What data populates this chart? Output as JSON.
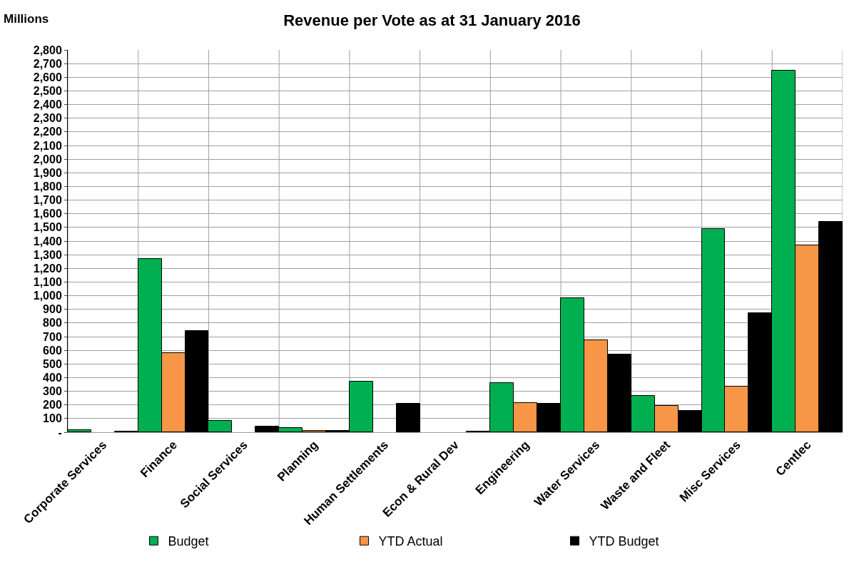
{
  "chart_data": {
    "type": "bar",
    "title": "Revenue per Vote as at 31 January 2016",
    "ylabel": "Millions",
    "categories": [
      "Corporate Services",
      "Finance",
      "Social Services",
      "Planning",
      "Human Settlements",
      "Econ & Rural Dev",
      "Engineering",
      "Water Services",
      "Waste and Fleet",
      "Misc Services",
      "Centlec"
    ],
    "series": [
      {
        "name": "Budget",
        "color": "#00b050",
        "values": [
          15,
          1270,
          85,
          30,
          370,
          null,
          360,
          980,
          265,
          1490,
          2650
        ]
      },
      {
        "name": "YTD Actual",
        "color": "#f79646",
        "values": [
          null,
          580,
          null,
          12,
          null,
          null,
          215,
          675,
          195,
          335,
          1370
        ]
      },
      {
        "name": "YTD Budget",
        "color": "#000000",
        "values": [
          3,
          740,
          40,
          12,
          210,
          3,
          210,
          570,
          155,
          870,
          1540
        ]
      }
    ],
    "ylim": [
      0,
      2800
    ],
    "yticks": [
      {
        "value": 0,
        "label": "-"
      },
      100,
      200,
      300,
      400,
      500,
      600,
      700,
      800,
      900,
      {
        "value": 1000,
        "label": "1,000"
      },
      {
        "value": 1100,
        "label": "1,100"
      },
      {
        "value": 1200,
        "label": "1,200"
      },
      {
        "value": 1300,
        "label": "1,300"
      },
      {
        "value": 1400,
        "label": "1,400"
      },
      {
        "value": 1500,
        "label": "1,500"
      },
      {
        "value": 1600,
        "label": "1,600"
      },
      {
        "value": 1700,
        "label": "1,700"
      },
      {
        "value": 1800,
        "label": "1,800"
      },
      {
        "value": 1900,
        "label": "1,900"
      },
      {
        "value": 2000,
        "label": "2,000"
      },
      {
        "value": 2100,
        "label": "2,100"
      },
      {
        "value": 2200,
        "label": "2,200"
      },
      {
        "value": 2300,
        "label": "2,300"
      },
      {
        "value": 2400,
        "label": "2,400"
      },
      {
        "value": 2500,
        "label": "2,500"
      },
      {
        "value": 2600,
        "label": "2,600"
      },
      {
        "value": 2700,
        "label": "2,700"
      },
      {
        "value": 2800,
        "label": "2,800"
      }
    ],
    "grid": true,
    "legend": "bottom"
  }
}
